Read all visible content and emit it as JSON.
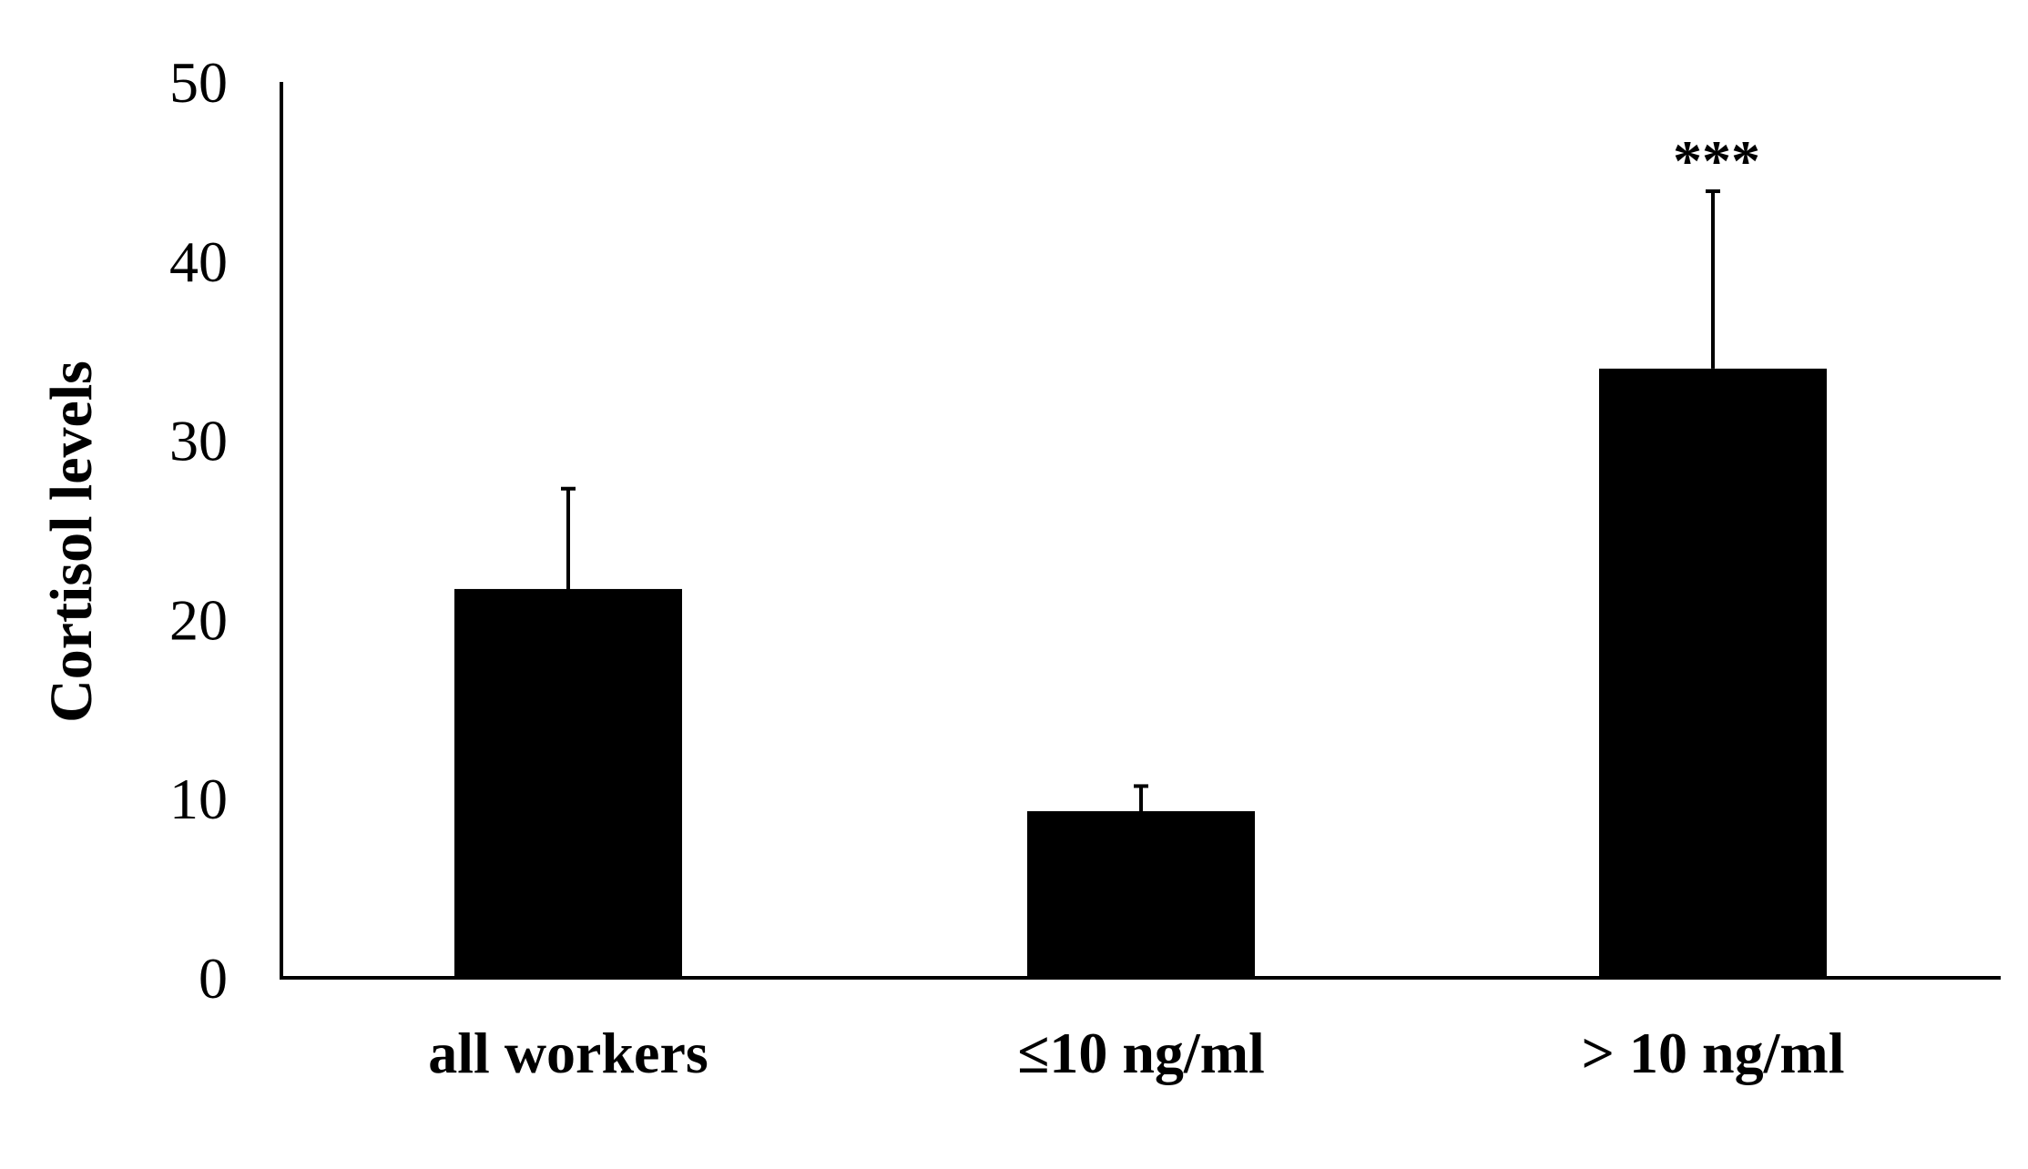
{
  "chart_data": {
    "type": "bar",
    "categories": [
      "all workers",
      "≤10 ng/ml",
      "> 10 ng/ml"
    ],
    "values": [
      21.7,
      9.3,
      34.0
    ],
    "error_bars": [
      5.6,
      1.4,
      9.9
    ],
    "annotations": [
      "",
      "",
      "***"
    ],
    "title": "",
    "xlabel": "",
    "ylabel": "Cortisol  levels",
    "ylim": [
      0,
      50
    ],
    "yticks": [
      0,
      10,
      20,
      30,
      40,
      50
    ],
    "bar_color": "#000000",
    "grid": false,
    "legend": "none"
  }
}
